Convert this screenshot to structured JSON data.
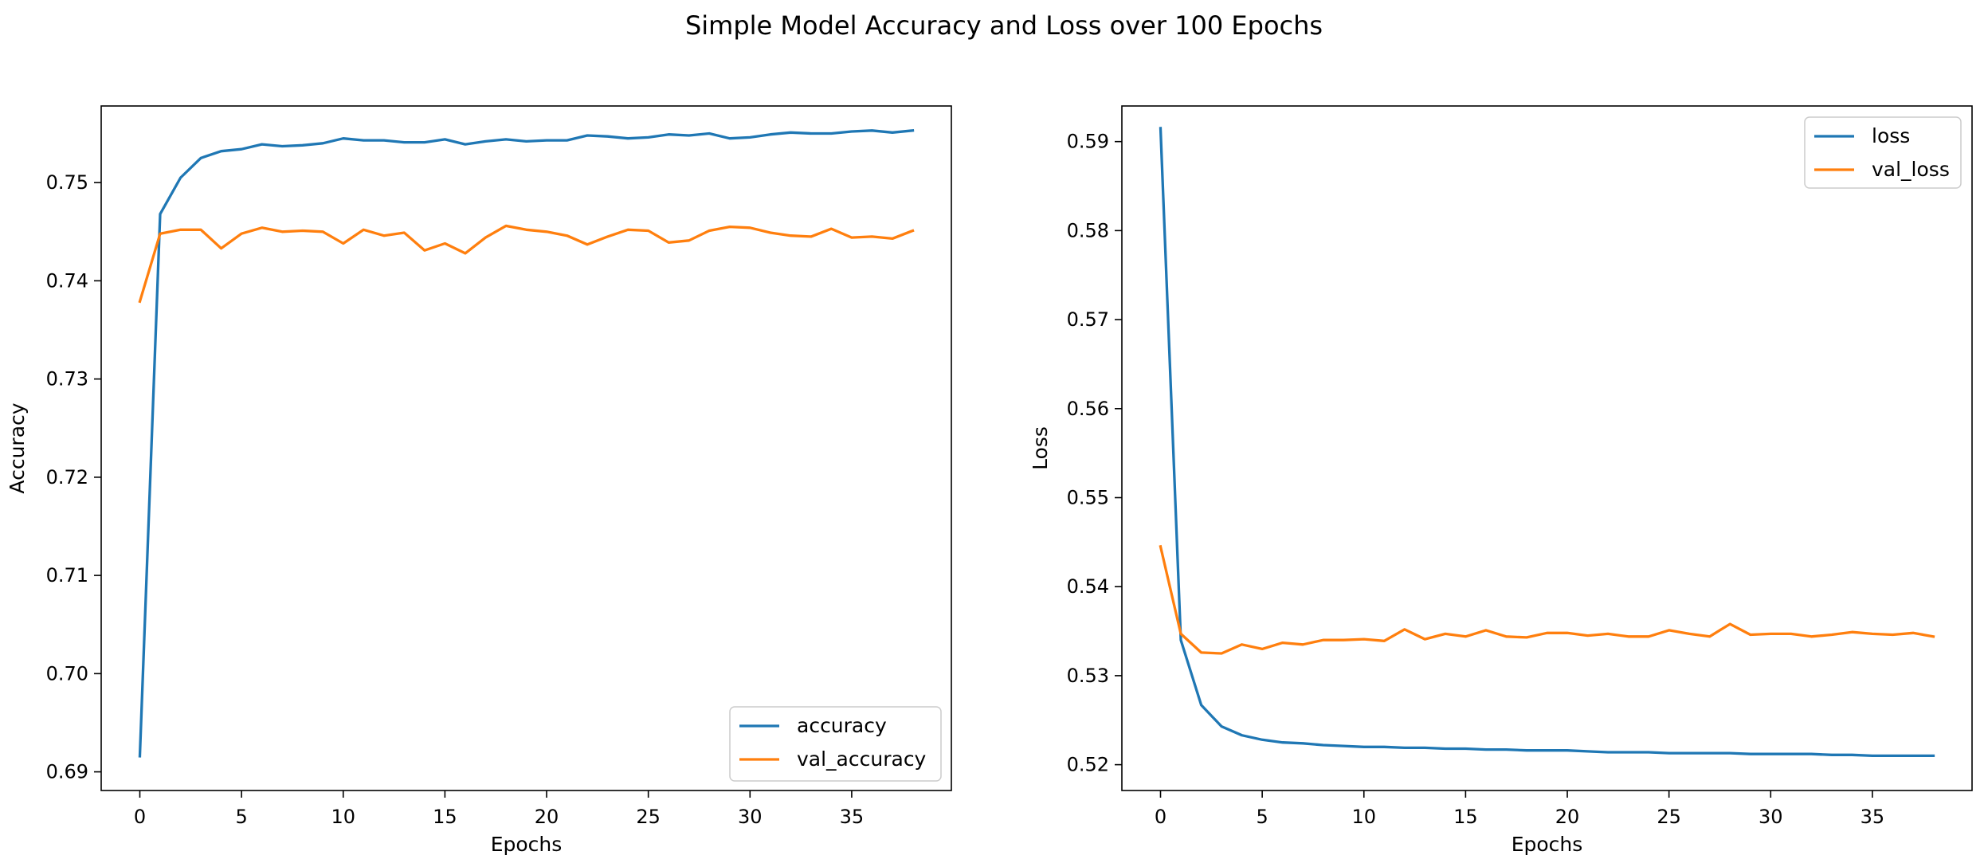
{
  "figure": {
    "title": "Simple Model Accuracy and Loss over 100 Epochs"
  },
  "colors": {
    "series_blue": "#1f77b4",
    "series_orange": "#ff7f0e",
    "axes": "#000000",
    "legend_border": "#cccccc",
    "background": "#ffffff"
  },
  "chart_data": [
    {
      "type": "line",
      "title": "",
      "xlabel": "Epochs",
      "ylabel": "Accuracy",
      "xlim": [
        -1.9,
        39.9
      ],
      "ylim": [
        0.6881,
        0.7578
      ],
      "xticks": [
        0,
        5,
        10,
        15,
        20,
        25,
        30,
        35
      ],
      "yticks": [
        0.69,
        0.7,
        0.71,
        0.72,
        0.73,
        0.74,
        0.75
      ],
      "ytick_labels": [
        "0.69",
        "0.70",
        "0.71",
        "0.72",
        "0.73",
        "0.74",
        "0.75"
      ],
      "legend_position": "lower right",
      "grid": false,
      "x": [
        0,
        1,
        2,
        3,
        4,
        5,
        6,
        7,
        8,
        9,
        10,
        11,
        12,
        13,
        14,
        15,
        16,
        17,
        18,
        19,
        20,
        21,
        22,
        23,
        24,
        25,
        26,
        27,
        28,
        29,
        30,
        31,
        32,
        33,
        34,
        35,
        36,
        37,
        38
      ],
      "series": [
        {
          "name": "accuracy",
          "color": "#1f77b4",
          "values": [
            0.6916,
            0.7468,
            0.7505,
            0.7525,
            0.7532,
            0.7534,
            0.7539,
            0.7537,
            0.7538,
            0.754,
            0.7545,
            0.7543,
            0.7543,
            0.7541,
            0.7541,
            0.7544,
            0.7539,
            0.7542,
            0.7544,
            0.7542,
            0.7543,
            0.7543,
            0.7548,
            0.7547,
            0.7545,
            0.7546,
            0.7549,
            0.7548,
            0.755,
            0.7545,
            0.7546,
            0.7549,
            0.7551,
            0.755,
            0.755,
            0.7552,
            0.7553,
            0.7551,
            0.7553
          ]
        },
        {
          "name": "val_accuracy",
          "color": "#ff7f0e",
          "values": [
            0.7379,
            0.7448,
            0.7452,
            0.7452,
            0.7433,
            0.7448,
            0.7454,
            0.745,
            0.7451,
            0.745,
            0.7438,
            0.7452,
            0.7446,
            0.7449,
            0.7431,
            0.7438,
            0.7428,
            0.7444,
            0.7456,
            0.7452,
            0.745,
            0.7446,
            0.7437,
            0.7445,
            0.7452,
            0.7451,
            0.7439,
            0.7441,
            0.7451,
            0.7455,
            0.7454,
            0.7449,
            0.7446,
            0.7445,
            0.7453,
            0.7444,
            0.7445,
            0.7443,
            0.7451
          ]
        }
      ]
    },
    {
      "type": "line",
      "title": "",
      "xlabel": "Epochs",
      "ylabel": "Loss",
      "xlim": [
        -1.9,
        39.9
      ],
      "ylim": [
        0.5171,
        0.594
      ],
      "xticks": [
        0,
        5,
        10,
        15,
        20,
        25,
        30,
        35
      ],
      "yticks": [
        0.52,
        0.53,
        0.54,
        0.55,
        0.56,
        0.57,
        0.58,
        0.59
      ],
      "ytick_labels": [
        "0.52",
        "0.53",
        "0.54",
        "0.55",
        "0.56",
        "0.57",
        "0.58",
        "0.59"
      ],
      "legend_position": "upper right",
      "grid": false,
      "x": [
        0,
        1,
        2,
        3,
        4,
        5,
        6,
        7,
        8,
        9,
        10,
        11,
        12,
        13,
        14,
        15,
        16,
        17,
        18,
        19,
        20,
        21,
        22,
        23,
        24,
        25,
        26,
        27,
        28,
        29,
        30,
        31,
        32,
        33,
        34,
        35,
        36,
        37,
        38
      ],
      "series": [
        {
          "name": "loss",
          "color": "#1f77b4",
          "values": [
            0.5915,
            0.534,
            0.5267,
            0.5243,
            0.5233,
            0.5228,
            0.5225,
            0.5224,
            0.5222,
            0.5221,
            0.522,
            0.522,
            0.5219,
            0.5219,
            0.5218,
            0.5218,
            0.5217,
            0.5217,
            0.5216,
            0.5216,
            0.5216,
            0.5215,
            0.5214,
            0.5214,
            0.5214,
            0.5213,
            0.5213,
            0.5213,
            0.5213,
            0.5212,
            0.5212,
            0.5212,
            0.5212,
            0.5211,
            0.5211,
            0.521,
            0.521,
            0.521,
            0.521
          ]
        },
        {
          "name": "val_loss",
          "color": "#ff7f0e",
          "values": [
            0.5445,
            0.5347,
            0.5326,
            0.5325,
            0.5335,
            0.533,
            0.5337,
            0.5335,
            0.534,
            0.534,
            0.5341,
            0.5339,
            0.5352,
            0.5341,
            0.5347,
            0.5344,
            0.5351,
            0.5344,
            0.5343,
            0.5348,
            0.5348,
            0.5345,
            0.5347,
            0.5344,
            0.5344,
            0.5351,
            0.5347,
            0.5344,
            0.5358,
            0.5346,
            0.5347,
            0.5347,
            0.5344,
            0.5346,
            0.5349,
            0.5347,
            0.5346,
            0.5348,
            0.5344
          ]
        }
      ]
    }
  ]
}
